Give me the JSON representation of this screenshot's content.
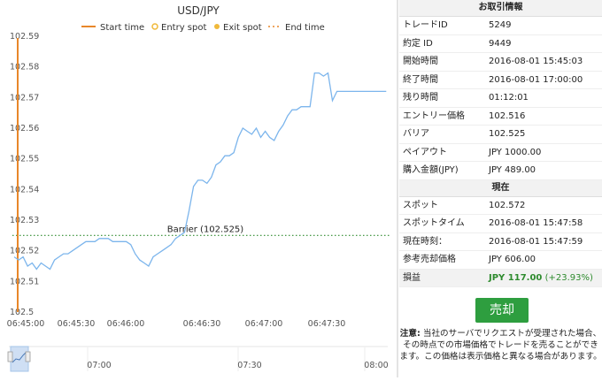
{
  "chart_data": {
    "type": "line",
    "title": "USD/JPY",
    "legend": [
      "Start time",
      "Entry spot",
      "Exit spot",
      "End time"
    ],
    "legend_placement": "top",
    "y_ticks": [
      "102.59",
      "102.58",
      "102.57",
      "102.56",
      "102.55",
      "102.54",
      "102.53",
      "102.52",
      "102.51",
      "102.5"
    ],
    "x_ticks": [
      "06:45:00",
      "06:45:30",
      "06:46:00",
      "06:46:30",
      "06:47:00",
      "06:47:30"
    ],
    "ylim": [
      102.5,
      102.59
    ],
    "barrier_label": "Barrier (102.525)",
    "barrier": 102.525,
    "navigator_ticks": [
      "07:00",
      "07:30",
      "08:00"
    ],
    "series": [
      {
        "x": [
          0,
          3,
          6,
          9,
          12,
          15,
          18,
          21,
          24,
          27,
          30,
          33,
          36,
          39,
          42,
          45,
          48,
          51,
          54,
          57,
          60,
          63,
          66,
          69,
          72,
          75,
          78,
          81,
          84,
          87,
          90,
          93,
          96,
          99,
          102,
          105,
          108,
          111,
          114,
          117,
          120,
          123,
          126,
          129,
          132,
          135,
          138,
          141,
          144,
          147,
          150,
          153,
          156,
          159,
          162,
          165,
          168,
          171,
          174,
          177,
          180,
          183,
          186,
          189,
          192,
          195,
          198,
          201,
          204,
          207,
          210,
          213,
          216,
          219,
          222,
          225,
          228,
          231,
          234,
          237,
          240,
          243,
          246,
          249
        ],
        "y": [
          102.518,
          102.517,
          102.518,
          102.515,
          102.516,
          102.514,
          102.516,
          102.515,
          102.514,
          102.517,
          102.518,
          102.519,
          102.519,
          102.52,
          102.521,
          102.522,
          102.523,
          102.523,
          102.523,
          102.524,
          102.524,
          102.524,
          102.523,
          102.523,
          102.523,
          102.523,
          102.522,
          102.519,
          102.517,
          102.516,
          102.515,
          102.518,
          102.519,
          102.52,
          102.521,
          102.522,
          102.524,
          102.525,
          102.526,
          102.533,
          102.541,
          102.543,
          102.543,
          102.542,
          102.544,
          102.548,
          102.549,
          102.551,
          102.551,
          102.552,
          102.557,
          102.56,
          102.559,
          102.558,
          102.56,
          102.557,
          102.559,
          102.557,
          102.556,
          102.559,
          102.561,
          102.564,
          102.566,
          102.566,
          102.567,
          102.567,
          102.567,
          102.578,
          102.578,
          102.577,
          102.578,
          102.569,
          102.572,
          102.572,
          102.572,
          102.572,
          102.572,
          102.572,
          102.572,
          102.572,
          102.572,
          102.572,
          102.572,
          102.572
        ]
      }
    ]
  },
  "info": {
    "header": "お取引情報",
    "rows": [
      {
        "label": "トレードID",
        "value": "5249"
      },
      {
        "label": "約定 ID",
        "value": "9449"
      },
      {
        "label": "開始時間",
        "value": "2016-08-01 15:45:03"
      },
      {
        "label": "終了時間",
        "value": "2016-08-01 17:00:00"
      },
      {
        "label": "残り時間",
        "value": "01:12:01"
      },
      {
        "label": "エントリー価格",
        "value": "102.516"
      },
      {
        "label": "バリア",
        "value": "102.525"
      },
      {
        "label": "ペイアウト",
        "value": "JPY 1000.00"
      },
      {
        "label": "購入金額(JPY)",
        "value": "JPY 489.00"
      }
    ],
    "current_header": "現在",
    "current_rows": [
      {
        "label": "スポット",
        "value": "102.572"
      },
      {
        "label": "スポットタイム",
        "value": "2016-08-01 15:47:58"
      },
      {
        "label": "現在時刻：",
        "value": "2016-08-01 15:47:59"
      },
      {
        "label": "参考売却価格",
        "value": "JPY 606.00"
      }
    ],
    "pnl_label": "損益",
    "pnl_value": "JPY 117.00",
    "pnl_pct": "(+23.93%)",
    "sell_button": "売却",
    "note_bold": "注意:",
    "note_text": " 当社のサーバでリクエストが受理された場合、その時点での市場価格でトレードを売ることができます。この価格は表示価格と異なる場合があります。"
  },
  "colors": {
    "line": "#7cb5ec",
    "start_time": "#e8872a",
    "barrier": "#2e8b2e",
    "sell_button": "#2e9e3f",
    "pnl": "#2e8b2e"
  }
}
